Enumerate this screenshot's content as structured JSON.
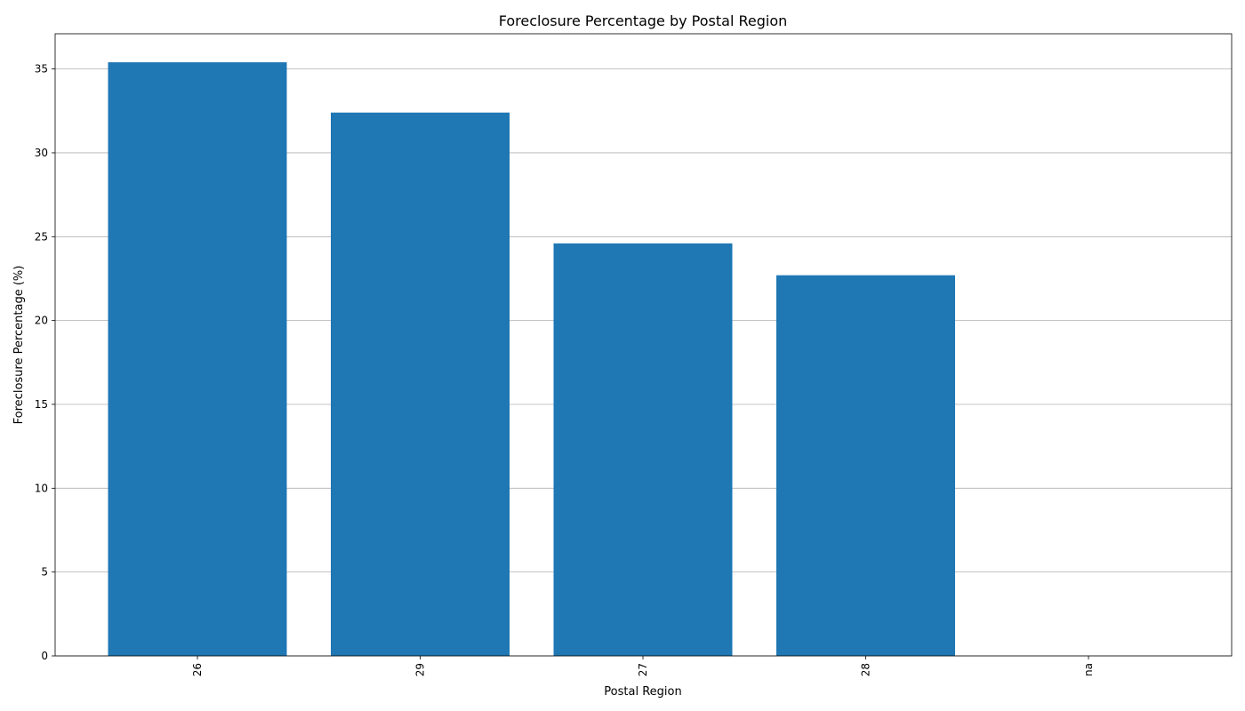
{
  "chart_data": {
    "type": "bar",
    "title": "Foreclosure Percentage by Postal Region",
    "xlabel": "Postal Region",
    "ylabel": "Foreclosure Percentage (%)",
    "categories": [
      "26",
      "29",
      "27",
      "28",
      "na"
    ],
    "values": [
      35.4,
      32.4,
      24.6,
      22.7,
      0
    ],
    "ylim": [
      0,
      37.1
    ],
    "yticks": [
      0,
      5,
      10,
      15,
      20,
      25,
      30,
      35
    ],
    "grid": "y",
    "bar_color": "#1f77b4",
    "xtick_rotation": "vertical"
  }
}
